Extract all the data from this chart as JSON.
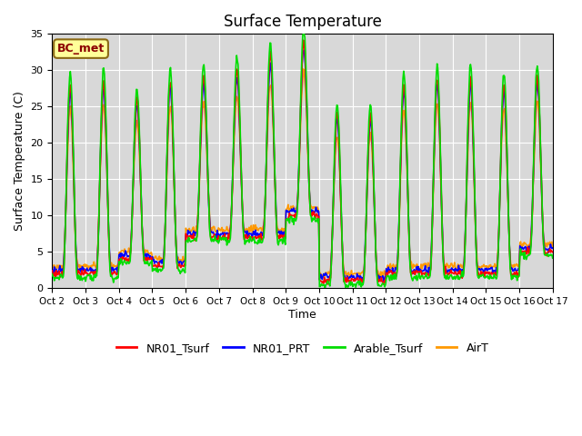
{
  "title": "Surface Temperature",
  "ylabel": "Surface Temperature (C)",
  "xlabel": "Time",
  "ylim": [
    0,
    35
  ],
  "bg_color": "#d8d8d8",
  "fig_color": "#ffffff",
  "annotation_label": "BC_met",
  "annotation_bg": "#ffff99",
  "annotation_edge": "#8B6914",
  "grid_color": "#ffffff",
  "lines": {
    "NR01_Tsurf": {
      "color": "#ff0000",
      "lw": 1.2
    },
    "NR01_PRT": {
      "color": "#0000ff",
      "lw": 1.2
    },
    "Arable_Tsurf": {
      "color": "#00dd00",
      "lw": 1.2
    },
    "AirT": {
      "color": "#ff9900",
      "lw": 1.2
    }
  },
  "xtick_labels": [
    "Oct 2",
    "Oct 3",
    "Oct 4",
    "Oct 5",
    "Oct 6",
    "Oct 7",
    "Oct 8",
    "Oct 9",
    "Oct 10",
    "Oct 11",
    "Oct 12",
    "Oct 13",
    "Oct 14",
    "Oct 15",
    "Oct 16",
    "Oct 17"
  ],
  "ytick_labels": [
    0,
    5,
    10,
    15,
    20,
    25,
    30,
    35
  ],
  "days": 15,
  "pts_per_day": 48,
  "day_peaks": [
    28,
    28.5,
    26,
    28.5,
    29,
    30,
    32,
    34,
    24,
    24,
    28,
    29,
    29,
    28,
    29
  ],
  "day_mins": [
    2,
    2,
    4,
    3,
    7,
    7,
    7,
    10,
    1,
    1,
    2,
    2,
    2,
    2,
    5
  ],
  "airt_scale": 0.88,
  "green_scale": 1.06
}
